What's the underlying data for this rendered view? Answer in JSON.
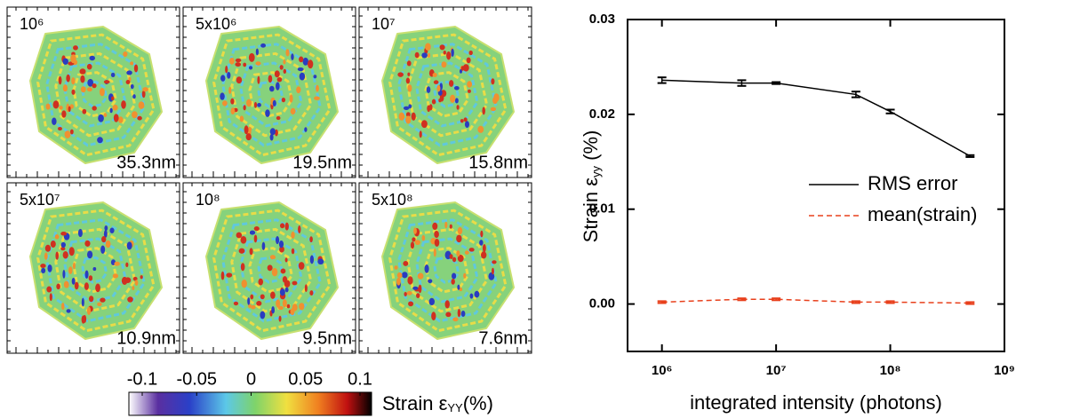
{
  "panels": [
    {
      "label": "10⁶",
      "resolution": "35.3nm"
    },
    {
      "label": "5x10⁶",
      "resolution": "19.5nm"
    },
    {
      "label": "10⁷",
      "resolution": "15.8nm"
    },
    {
      "label": "5x10⁷",
      "resolution": "10.9nm"
    },
    {
      "label": "10⁸",
      "resolution": "9.5nm"
    },
    {
      "label": "5x10⁸",
      "resolution": "7.6nm"
    }
  ],
  "colorbar": {
    "ticks": [
      -0.1,
      -0.05,
      0,
      0.05,
      0.1
    ],
    "label": {
      "main": "Strain ε",
      "sub": "YY",
      "unit": "(%)"
    }
  },
  "chart_data": {
    "type": "line",
    "xlabel": "integrated intensity (photons)",
    "ylabel": {
      "main": "Strain ε",
      "sub": "yy",
      "unit": " (%)"
    },
    "x": [
      1000000,
      5000000,
      10000000,
      50000000,
      100000000,
      500000000
    ],
    "xlog": true,
    "xlim": [
      500000,
      1000000000
    ],
    "xticks": [
      {
        "value": 1000000,
        "label": "10⁶"
      },
      {
        "value": 10000000,
        "label": "10⁷"
      },
      {
        "value": 100000000,
        "label": "10⁸"
      },
      {
        "value": 1000000000,
        "label": "10⁹"
      }
    ],
    "ylim": [
      -0.005,
      0.03
    ],
    "yticks": [
      {
        "value": 0,
        "label": "0.00"
      },
      {
        "value": 0.01,
        "label": "0.01"
      },
      {
        "value": 0.02,
        "label": "0.02"
      },
      {
        "value": 0.03,
        "label": "0.03"
      }
    ],
    "legend": "center right",
    "series": [
      {
        "name": "RMS error",
        "color": "#000000",
        "dash": false,
        "values": [
          0.0236,
          0.0233,
          0.0233,
          0.0221,
          0.0203,
          0.0156
        ],
        "errors": [
          0.0003,
          0.0003,
          0.0001,
          0.0003,
          0.0002,
          0.0001
        ]
      },
      {
        "name": "mean(strain)",
        "color": "#e8401c",
        "dash": true,
        "values": [
          0.0002,
          0.0005,
          0.0005,
          0.0002,
          0.0002,
          0.0001
        ],
        "errors": [
          0.0001,
          0.0001,
          0.0001,
          0.0001,
          0.0001,
          0.0001
        ]
      }
    ]
  }
}
